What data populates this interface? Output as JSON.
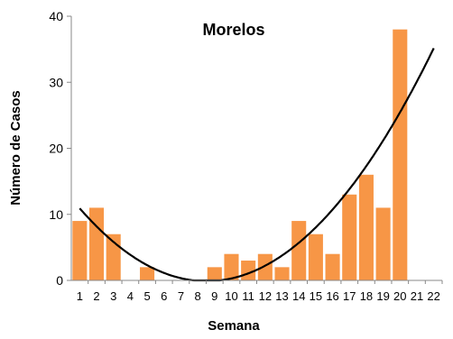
{
  "chart_data": {
    "type": "bar",
    "title": "Morelos",
    "xlabel": "Semana",
    "ylabel": "Número de Casos",
    "categories": [
      "1",
      "2",
      "3",
      "4",
      "5",
      "6",
      "7",
      "8",
      "9",
      "10",
      "11",
      "12",
      "13",
      "14",
      "15",
      "16",
      "17",
      "18",
      "19",
      "20",
      "21",
      "22"
    ],
    "series": [
      {
        "values": [
          9,
          11,
          7,
          0,
          2,
          0,
          0,
          0,
          2,
          4,
          3,
          4,
          2,
          9,
          7,
          4,
          13,
          16,
          11,
          38,
          0,
          0
        ]
      }
    ],
    "trendline": {
      "type": "polynomial",
      "order": 2,
      "color": "#000000"
    },
    "ylim": [
      0,
      40
    ],
    "yticks": [
      0,
      10,
      20,
      30,
      40
    ],
    "bar_color": "#F79646",
    "grid": false,
    "legend": "none"
  }
}
